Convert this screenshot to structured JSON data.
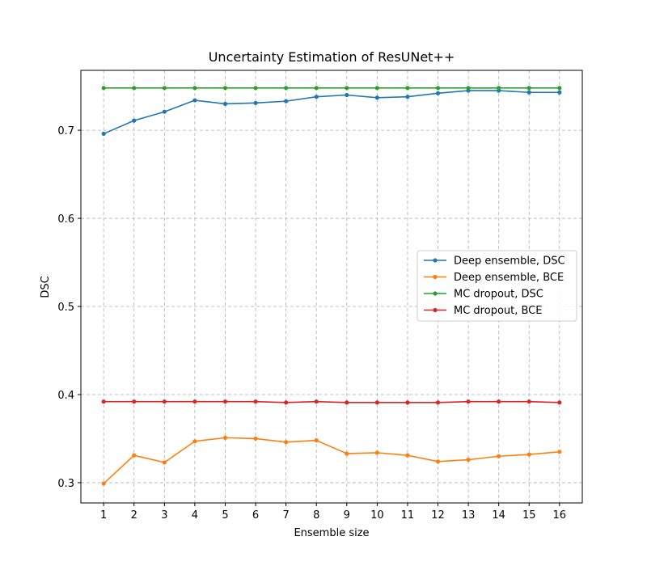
{
  "chart_data": {
    "type": "line",
    "title": "Uncertainty Estimation of ResUNet++",
    "xlabel": "Ensemble size",
    "ylabel": "DSC",
    "x": [
      1,
      2,
      3,
      4,
      5,
      6,
      7,
      8,
      9,
      10,
      11,
      12,
      13,
      14,
      15,
      16
    ],
    "xlim": [
      0.25,
      16.75
    ],
    "ylim": [
      0.277,
      0.768
    ],
    "yticks": [
      0.3,
      0.4,
      0.5,
      0.6,
      0.7
    ],
    "grid": true,
    "legend_position": "center-right",
    "series": [
      {
        "name": "Deep ensemble, DSC",
        "color": "#1f77b4",
        "values": [
          0.696,
          0.711,
          0.721,
          0.734,
          0.73,
          0.731,
          0.733,
          0.738,
          0.74,
          0.737,
          0.738,
          0.742,
          0.745,
          0.745,
          0.743,
          0.743
        ]
      },
      {
        "name": "Deep ensemble, BCE",
        "color": "#ff7f0e",
        "values": [
          0.299,
          0.331,
          0.323,
          0.347,
          0.351,
          0.35,
          0.346,
          0.348,
          0.333,
          0.334,
          0.331,
          0.324,
          0.326,
          0.33,
          0.332,
          0.335
        ]
      },
      {
        "name": "MC dropout, DSC",
        "color": "#2ca02c",
        "values": [
          0.748,
          0.748,
          0.748,
          0.748,
          0.748,
          0.748,
          0.748,
          0.748,
          0.748,
          0.748,
          0.748,
          0.748,
          0.748,
          0.748,
          0.748,
          0.748
        ]
      },
      {
        "name": "MC dropout, BCE",
        "color": "#d62728",
        "values": [
          0.392,
          0.392,
          0.392,
          0.392,
          0.392,
          0.392,
          0.391,
          0.392,
          0.391,
          0.391,
          0.391,
          0.391,
          0.392,
          0.392,
          0.392,
          0.391
        ]
      }
    ]
  }
}
